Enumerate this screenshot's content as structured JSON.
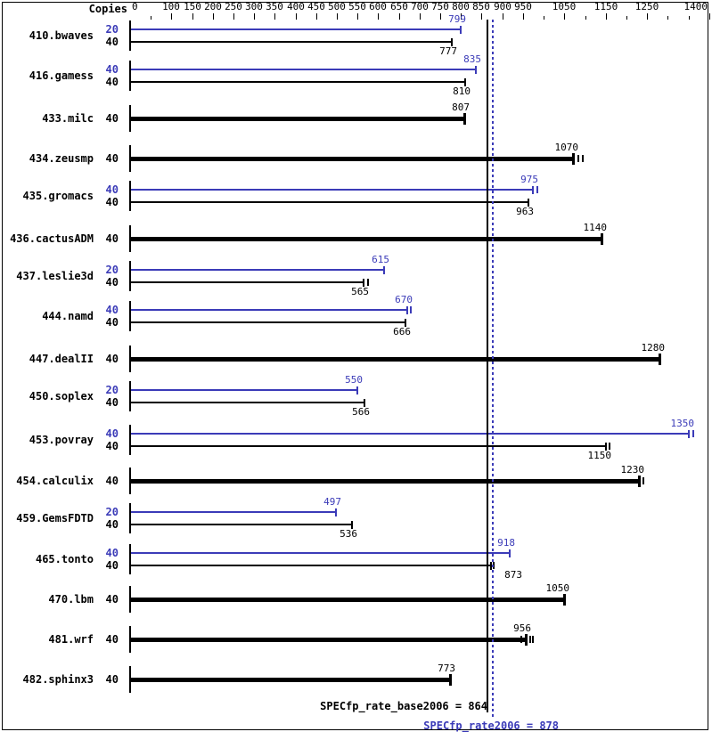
{
  "colors": {
    "peak": "#3b3bb8",
    "base": "#000000",
    "background": "#ffffff"
  },
  "header": {
    "copies_label": "Copies"
  },
  "summary": {
    "base_label": "SPECfp_rate_base2006 = 864",
    "peak_label": "SPECfp_rate2006 = 878",
    "base_value": 864,
    "peak_value": 878
  },
  "chart_data": {
    "type": "bar",
    "orientation": "horizontal",
    "xlim": [
      0,
      1400
    ],
    "grid": false,
    "axis": {
      "labeled_ticks": [
        0,
        100,
        150,
        200,
        250,
        300,
        350,
        400,
        450,
        500,
        550,
        600,
        650,
        700,
        750,
        800,
        850,
        900,
        950,
        1050,
        1150,
        1250,
        1400
      ],
      "minor_ticks": [
        50,
        1000,
        1100,
        1200,
        1300,
        1350
      ]
    },
    "series_legend": [
      {
        "name": "peak",
        "color": "#3b3bb8"
      },
      {
        "name": "base",
        "color": "#000000"
      }
    ],
    "benchmarks": [
      {
        "name": "410.bwaves",
        "bars": [
          {
            "copies": 20,
            "value": 799,
            "series": "peak"
          },
          {
            "copies": 40,
            "value": 777,
            "series": "base"
          }
        ]
      },
      {
        "name": "416.gamess",
        "bars": [
          {
            "copies": 40,
            "value": 835,
            "series": "peak"
          },
          {
            "copies": 40,
            "value": 810,
            "series": "base"
          }
        ]
      },
      {
        "name": "433.milc",
        "bars": [
          {
            "copies": 40,
            "value": 807,
            "series": "both"
          }
        ]
      },
      {
        "name": "434.zeusmp",
        "bars": [
          {
            "copies": 40,
            "value": 1070,
            "series": "both",
            "ticks": [
              5,
              10
            ]
          }
        ]
      },
      {
        "name": "435.gromacs",
        "bars": [
          {
            "copies": 40,
            "value": 975,
            "series": "peak",
            "ticks": [
              4
            ]
          },
          {
            "copies": 40,
            "value": 963,
            "series": "base"
          }
        ]
      },
      {
        "name": "436.cactusADM",
        "bars": [
          {
            "copies": 40,
            "value": 1140,
            "series": "both"
          }
        ]
      },
      {
        "name": "437.leslie3d",
        "bars": [
          {
            "copies": 20,
            "value": 615,
            "series": "peak"
          },
          {
            "copies": 40,
            "value": 565,
            "series": "base",
            "ticks": [
              4
            ]
          }
        ]
      },
      {
        "name": "444.namd",
        "bars": [
          {
            "copies": 40,
            "value": 670,
            "series": "peak",
            "ticks": [
              3
            ]
          },
          {
            "copies": 40,
            "value": 666,
            "series": "base"
          }
        ]
      },
      {
        "name": "447.dealII",
        "bars": [
          {
            "copies": 40,
            "value": 1280,
            "series": "both"
          }
        ]
      },
      {
        "name": "450.soplex",
        "bars": [
          {
            "copies": 20,
            "value": 550,
            "series": "peak"
          },
          {
            "copies": 40,
            "value": 566,
            "series": "base"
          }
        ]
      },
      {
        "name": "453.povray",
        "bars": [
          {
            "copies": 40,
            "value": 1350,
            "series": "peak",
            "ticks": [
              4
            ]
          },
          {
            "copies": 40,
            "value": 1150,
            "series": "base",
            "ticks": [
              3
            ]
          }
        ]
      },
      {
        "name": "454.calculix",
        "bars": [
          {
            "copies": 40,
            "value": 1230,
            "series": "both",
            "ticks": [
              4
            ]
          }
        ]
      },
      {
        "name": "459.GemsFDTD",
        "bars": [
          {
            "copies": 20,
            "value": 497,
            "series": "peak"
          },
          {
            "copies": 40,
            "value": 536,
            "series": "base"
          }
        ]
      },
      {
        "name": "465.tonto",
        "bars": [
          {
            "copies": 40,
            "value": 918,
            "series": "peak"
          },
          {
            "copies": 40,
            "value": 873,
            "series": "base",
            "ticks": [
              2
            ],
            "label_dx": 29
          }
        ]
      },
      {
        "name": "470.lbm",
        "bars": [
          {
            "copies": 40,
            "value": 1050,
            "series": "both"
          }
        ]
      },
      {
        "name": "481.wrf",
        "bars": [
          {
            "copies": 40,
            "value": 956,
            "series": "both",
            "ticks": [
              -6,
              4,
              7
            ]
          }
        ]
      },
      {
        "name": "482.sphinx3",
        "bars": [
          {
            "copies": 40,
            "value": 773,
            "series": "both"
          }
        ]
      }
    ]
  }
}
